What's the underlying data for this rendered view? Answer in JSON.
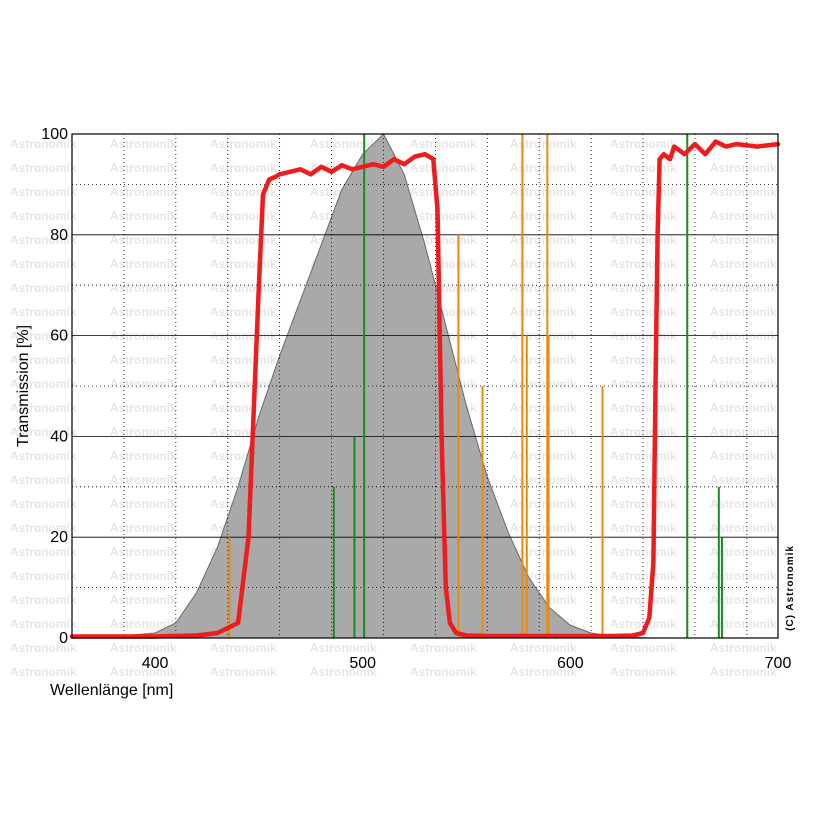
{
  "chart_data": {
    "type": "line",
    "xlabel": "Wellenlänge [nm]",
    "ylabel": "Transmission [%]",
    "xlim": [
      360,
      700
    ],
    "ylim": [
      0,
      100
    ],
    "x_ticks": [
      400,
      500,
      600,
      700
    ],
    "y_ticks": [
      0,
      20,
      40,
      60,
      80,
      100
    ],
    "grid": true,
    "watermark": "Astronomik",
    "copyright": "(C) Astronomik",
    "colors": {
      "filter_curve": "#ee1c1c",
      "eye_sensitivity_fill": "#a9a9a9",
      "eye_sensitivity_edge": "#6a6a6a",
      "orange_lines": "#e88a0c",
      "green_lines": "#1e8a1e",
      "grid": "#000000"
    },
    "series": [
      {
        "kind": "filled_area",
        "x": [
          360,
          380,
          400,
          410,
          420,
          430,
          440,
          450,
          460,
          470,
          480,
          490,
          500,
          510,
          520,
          530,
          540,
          550,
          560,
          570,
          580,
          590,
          600,
          610,
          620,
          630,
          640
        ],
        "y": [
          0,
          0.3,
          1,
          3,
          9,
          18,
          30,
          44,
          56,
          67,
          78,
          89,
          96,
          100,
          92,
          78,
          62,
          46,
          32,
          21,
          12,
          6,
          2.5,
          1,
          0.4,
          0.1,
          0
        ]
      },
      {
        "kind": "line",
        "x": [
          360,
          380,
          400,
          420,
          430,
          440,
          445,
          450,
          452,
          455,
          458,
          460,
          465,
          470,
          475,
          480,
          485,
          490,
          495,
          500,
          505,
          510,
          515,
          520,
          525,
          530,
          534,
          536,
          538,
          540,
          542,
          545,
          550,
          560,
          580,
          600,
          620,
          630,
          635,
          638,
          640,
          641,
          642,
          643,
          645,
          648,
          650,
          655,
          660,
          665,
          670,
          675,
          680,
          690,
          700
        ],
        "y": [
          0.3,
          0.3,
          0.3,
          0.5,
          1,
          3,
          20,
          70,
          88,
          91,
          91.5,
          92,
          92.5,
          93,
          92,
          93.5,
          92.5,
          93.8,
          93,
          93.5,
          94,
          93.5,
          95,
          94,
          95.5,
          96,
          95,
          85,
          40,
          10,
          3,
          1,
          0.5,
          0.4,
          0.4,
          0.4,
          0.4,
          0.5,
          1,
          4,
          15,
          50,
          80,
          95,
          96,
          95,
          97.5,
          96,
          98,
          96,
          98.5,
          97.5,
          98,
          97.5,
          98
        ]
      }
    ],
    "spectral_lines": [
      {
        "color": "orange",
        "x": 435.8,
        "y": 20
      },
      {
        "color": "green",
        "x": 486.1,
        "y": 30
      },
      {
        "color": "green",
        "x": 496.0,
        "y": 40
      },
      {
        "color": "green",
        "x": 500.7,
        "y": 100
      },
      {
        "color": "orange",
        "x": 546.1,
        "y": 80
      },
      {
        "color": "orange",
        "x": 557.7,
        "y": 50
      },
      {
        "color": "orange",
        "x": 576.9,
        "y": 100
      },
      {
        "color": "orange",
        "x": 579.0,
        "y": 60
      },
      {
        "color": "orange",
        "x": 588.9,
        "y": 100
      },
      {
        "color": "orange",
        "x": 589.5,
        "y": 60
      },
      {
        "color": "orange",
        "x": 615.5,
        "y": 50
      },
      {
        "color": "green",
        "x": 656.3,
        "y": 100
      },
      {
        "color": "green",
        "x": 671.5,
        "y": 30
      },
      {
        "color": "green",
        "x": 673.0,
        "y": 20
      }
    ]
  }
}
